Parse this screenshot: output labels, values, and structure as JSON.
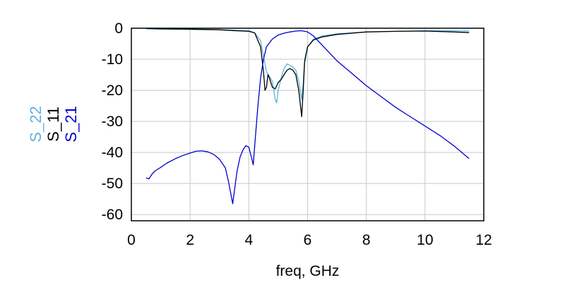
{
  "chart_data": {
    "type": "line",
    "xlabel": "freq, GHz",
    "ylabel": "",
    "xlim": [
      0,
      12
    ],
    "ylim": [
      -62,
      0
    ],
    "xticks": [
      0,
      2,
      4,
      6,
      8,
      10,
      12
    ],
    "yticks": [
      0,
      -10,
      -20,
      -30,
      -40,
      -50,
      -60
    ],
    "grid": true,
    "legend_placement": "left, rotated along y-axis",
    "series": [
      {
        "name": "S_22",
        "color": "#5ab3e0",
        "points": [
          [
            0.5,
            -0.2
          ],
          [
            1,
            -0.3
          ],
          [
            2,
            -0.4
          ],
          [
            3,
            -0.5
          ],
          [
            3.5,
            -0.6
          ],
          [
            4,
            -0.8
          ],
          [
            4.2,
            -1.5
          ],
          [
            4.4,
            -4
          ],
          [
            4.5,
            -9
          ],
          [
            4.6,
            -14
          ],
          [
            4.7,
            -15.5
          ],
          [
            4.8,
            -17
          ],
          [
            4.85,
            -20
          ],
          [
            4.9,
            -23
          ],
          [
            4.95,
            -24
          ],
          [
            5.0,
            -20
          ],
          [
            5.1,
            -16
          ],
          [
            5.2,
            -13
          ],
          [
            5.3,
            -11.5
          ],
          [
            5.4,
            -12
          ],
          [
            5.5,
            -12.5
          ],
          [
            5.6,
            -13.5
          ],
          [
            5.7,
            -17
          ],
          [
            5.8,
            -23
          ],
          [
            5.85,
            -18
          ],
          [
            5.9,
            -10
          ],
          [
            6.0,
            -6
          ],
          [
            6.2,
            -3.5
          ],
          [
            6.5,
            -2.5
          ],
          [
            7,
            -1.8
          ],
          [
            8,
            -1.2
          ],
          [
            9,
            -1.0
          ],
          [
            10,
            -0.8
          ],
          [
            11,
            -0.8
          ],
          [
            11.5,
            -0.9
          ]
        ]
      },
      {
        "name": "S_11",
        "color": "#000000",
        "points": [
          [
            0.5,
            -0.1
          ],
          [
            1,
            -0.2
          ],
          [
            2,
            -0.3
          ],
          [
            3,
            -0.5
          ],
          [
            3.5,
            -0.8
          ],
          [
            4,
            -1.0
          ],
          [
            4.2,
            -1.5
          ],
          [
            4.4,
            -6
          ],
          [
            4.5,
            -14
          ],
          [
            4.55,
            -20
          ],
          [
            4.6,
            -19
          ],
          [
            4.65,
            -15
          ],
          [
            4.7,
            -16
          ],
          [
            4.8,
            -19
          ],
          [
            4.9,
            -19.5
          ],
          [
            5.0,
            -17.5
          ],
          [
            5.1,
            -16.5
          ],
          [
            5.2,
            -15
          ],
          [
            5.3,
            -13.5
          ],
          [
            5.4,
            -13
          ],
          [
            5.5,
            -13.5
          ],
          [
            5.6,
            -15
          ],
          [
            5.7,
            -20
          ],
          [
            5.8,
            -28.5
          ],
          [
            5.85,
            -20
          ],
          [
            5.9,
            -11
          ],
          [
            6.0,
            -6
          ],
          [
            6.2,
            -3.8
          ],
          [
            6.5,
            -2.8
          ],
          [
            7,
            -2.0
          ],
          [
            8,
            -1.2
          ],
          [
            9,
            -1.0
          ],
          [
            10,
            -0.9
          ],
          [
            11,
            -1.2
          ],
          [
            11.5,
            -1.4
          ]
        ]
      },
      {
        "name": "S_21",
        "color": "#0000cc",
        "points": [
          [
            0.5,
            -48.2
          ],
          [
            0.6,
            -48.5
          ],
          [
            0.7,
            -47
          ],
          [
            0.8,
            -46
          ],
          [
            1.0,
            -44.8
          ],
          [
            1.2,
            -43.5
          ],
          [
            1.5,
            -42
          ],
          [
            1.8,
            -40.8
          ],
          [
            2.0,
            -40.2
          ],
          [
            2.2,
            -39.6
          ],
          [
            2.4,
            -39.5
          ],
          [
            2.6,
            -39.8
          ],
          [
            2.8,
            -40.6
          ],
          [
            3.0,
            -42.2
          ],
          [
            3.2,
            -45
          ],
          [
            3.3,
            -49
          ],
          [
            3.4,
            -54
          ],
          [
            3.45,
            -56.5
          ],
          [
            3.5,
            -53
          ],
          [
            3.6,
            -46
          ],
          [
            3.7,
            -41.5
          ],
          [
            3.8,
            -39.2
          ],
          [
            3.9,
            -37.8
          ],
          [
            4.0,
            -38.3
          ],
          [
            4.1,
            -42
          ],
          [
            4.15,
            -44
          ],
          [
            4.2,
            -38
          ],
          [
            4.3,
            -26
          ],
          [
            4.4,
            -16
          ],
          [
            4.5,
            -10
          ],
          [
            4.6,
            -6
          ],
          [
            4.8,
            -3.5
          ],
          [
            5.0,
            -2.2
          ],
          [
            5.2,
            -1.6
          ],
          [
            5.4,
            -1.2
          ],
          [
            5.6,
            -0.9
          ],
          [
            5.8,
            -0.8
          ],
          [
            6.0,
            -1.2
          ],
          [
            6.2,
            -2.5
          ],
          [
            6.5,
            -5.5
          ],
          [
            7.0,
            -10.5
          ],
          [
            7.5,
            -14.5
          ],
          [
            8.0,
            -18.5
          ],
          [
            8.5,
            -22
          ],
          [
            9.0,
            -25.5
          ],
          [
            9.5,
            -28.5
          ],
          [
            10.0,
            -31.5
          ],
          [
            10.5,
            -34.5
          ],
          [
            11.0,
            -38
          ],
          [
            11.5,
            -42
          ]
        ]
      }
    ]
  }
}
